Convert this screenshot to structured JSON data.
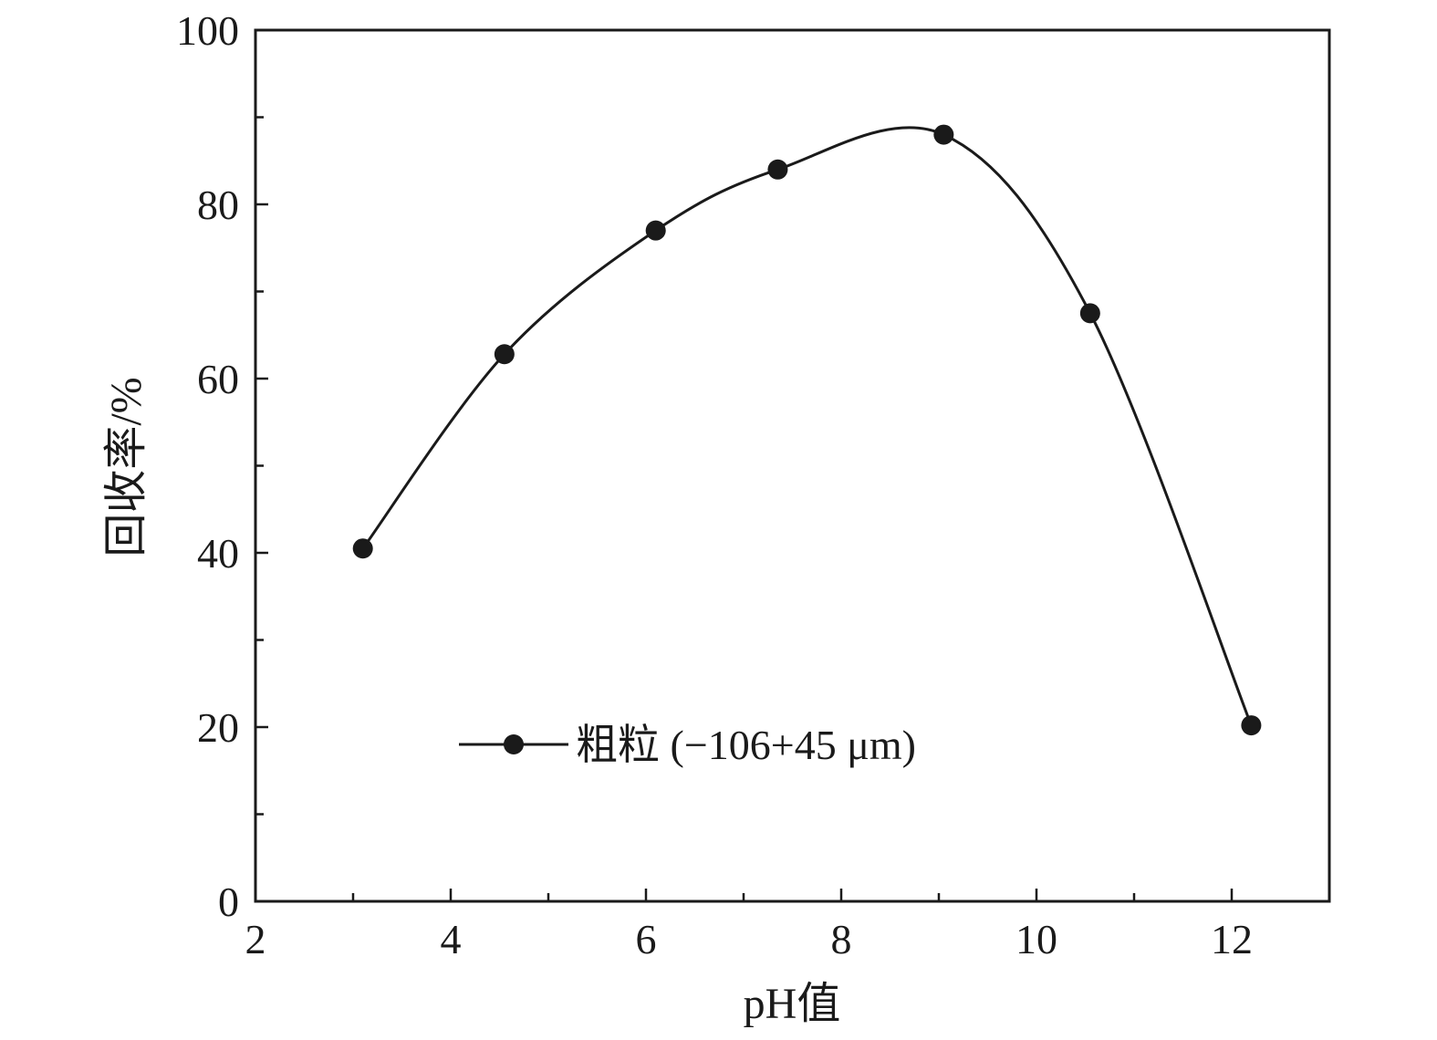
{
  "chart_data": {
    "type": "line",
    "xlabel": "pH值",
    "ylabel": "回收率/%",
    "xlim": [
      2,
      13
    ],
    "ylim": [
      0,
      100
    ],
    "x_major_ticks": [
      2,
      4,
      6,
      8,
      10,
      12
    ],
    "x_tick_labels": [
      "2",
      "4",
      "6",
      "8",
      "10",
      "12"
    ],
    "x_minor_ticks": [
      3,
      5,
      7,
      9,
      11
    ],
    "y_major_ticks": [
      0,
      20,
      40,
      60,
      80,
      100
    ],
    "y_tick_labels": [
      "0",
      "20",
      "40",
      "60",
      "80",
      "100"
    ],
    "y_minor_ticks": [
      10,
      30,
      50,
      70,
      90
    ],
    "grid": false,
    "legend_position": "lower-center",
    "series": [
      {
        "name": "粗粒 (−106+45 μm)",
        "marker": "filled-circle",
        "color": "#1a1a1a",
        "x": [
          3.1,
          4.55,
          6.1,
          7.35,
          9.05,
          10.55,
          12.2
        ],
        "y": [
          40.5,
          62.8,
          77.0,
          84.0,
          88.0,
          67.5,
          20.2
        ]
      }
    ]
  },
  "colors": {
    "line": "#1a1a1a",
    "background": "#ffffff"
  }
}
